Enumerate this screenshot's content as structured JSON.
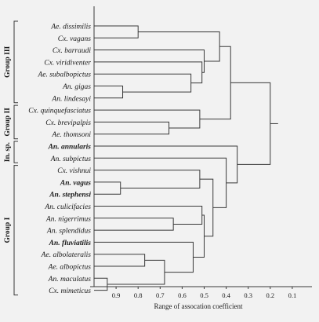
{
  "dendrogram": {
    "leaves": [
      {
        "name": "Ae. dissimilis",
        "bold": false
      },
      {
        "name": "Cx. vagans",
        "bold": false
      },
      {
        "name": "Cx. barraudi",
        "bold": false
      },
      {
        "name": "Cx. viridiventer",
        "bold": false
      },
      {
        "name": "Ae. subalbopictus",
        "bold": false
      },
      {
        "name": "An. gigas",
        "bold": false
      },
      {
        "name": "An. lindesayi",
        "bold": false
      },
      {
        "name": "Cx. quinquefasciatus",
        "bold": false
      },
      {
        "name": "Cx. brevipalpis",
        "bold": false
      },
      {
        "name": "Ae. thomsoni",
        "bold": false
      },
      {
        "name": "An. annularis",
        "bold": true
      },
      {
        "name": "An. subpictus",
        "bold": false
      },
      {
        "name": "Cx. vishnui",
        "bold": false
      },
      {
        "name": "An. vagus",
        "bold": true
      },
      {
        "name": "An. stephensi",
        "bold": true
      },
      {
        "name": "An. culicifacies",
        "bold": false
      },
      {
        "name": "An. nigerrimus",
        "bold": false
      },
      {
        "name": "An. splendidus",
        "bold": false
      },
      {
        "name": "An. fluviatilis",
        "bold": true
      },
      {
        "name": "Ae. albolateralis",
        "bold": false
      },
      {
        "name": "Ae. albopictus",
        "bold": false
      },
      {
        "name": "An. maculatus",
        "bold": false
      },
      {
        "name": "Cx. mimeticus",
        "bold": false
      }
    ],
    "merges": [
      {
        "id": "m1",
        "children": [
          "L0",
          "L1"
        ],
        "height": 0.8
      },
      {
        "id": "m2",
        "children": [
          "L5",
          "L6"
        ],
        "height": 0.87
      },
      {
        "id": "m3",
        "children": [
          "L4",
          "m2"
        ],
        "height": 0.56
      },
      {
        "id": "m4",
        "children": [
          "L3",
          "m3"
        ],
        "height": 0.51
      },
      {
        "id": "m5",
        "children": [
          "L2",
          "m4"
        ],
        "height": 0.5
      },
      {
        "id": "m6",
        "children": [
          "m1",
          "m5"
        ],
        "height": 0.43
      },
      {
        "id": "m7",
        "children": [
          "L8",
          "L9"
        ],
        "height": 0.66
      },
      {
        "id": "m8",
        "children": [
          "L7",
          "m7"
        ],
        "height": 0.52
      },
      {
        "id": "m9",
        "children": [
          "m6",
          "m8"
        ],
        "height": 0.38
      },
      {
        "id": "m10",
        "children": [
          "L13",
          "L14"
        ],
        "height": 0.88
      },
      {
        "id": "m11",
        "children": [
          "L12",
          "m10"
        ],
        "height": 0.52
      },
      {
        "id": "m12",
        "children": [
          "L16",
          "L17"
        ],
        "height": 0.64
      },
      {
        "id": "m13",
        "children": [
          "L15",
          "m12"
        ],
        "height": 0.51
      },
      {
        "id": "m14",
        "children": [
          "L19",
          "L20"
        ],
        "height": 0.77
      },
      {
        "id": "m15",
        "children": [
          "L21",
          "L22"
        ],
        "height": 0.94
      },
      {
        "id": "m16",
        "children": [
          "m14",
          "m15"
        ],
        "height": 0.68
      },
      {
        "id": "m17",
        "children": [
          "L18",
          "m16"
        ],
        "height": 0.55
      },
      {
        "id": "m18",
        "children": [
          "m13",
          "m17"
        ],
        "height": 0.5
      },
      {
        "id": "m19",
        "children": [
          "m11",
          "m18"
        ],
        "height": 0.46
      },
      {
        "id": "m20",
        "children": [
          "m19",
          "L11"
        ],
        "height": 0.4
      },
      {
        "id": "m21",
        "children": [
          "L10",
          "m20"
        ],
        "height": 0.35
      },
      {
        "id": "m22",
        "children": [
          "m9",
          "m21"
        ],
        "height": 0.2
      }
    ],
    "groups": [
      {
        "label": "Group III",
        "from": 0,
        "to": 6
      },
      {
        "label": "Group II",
        "from": 7,
        "to": 9
      },
      {
        "label": "In. sp.",
        "from": 10,
        "to": 11
      },
      {
        "label": "Group I",
        "from": 12,
        "to": 22
      }
    ],
    "axis": {
      "ticks": [
        0.9,
        0.8,
        0.7,
        0.6,
        0.5,
        0.4,
        0.3,
        0.2,
        0.1
      ],
      "tick_labels": [
        "0.9",
        "0.8",
        "0.7",
        "0.6",
        "0.5",
        "0.4",
        "0.3",
        "0.2",
        "0.1"
      ],
      "title": "Range of assocation coefficient",
      "range": [
        1.0,
        0.0
      ]
    }
  }
}
